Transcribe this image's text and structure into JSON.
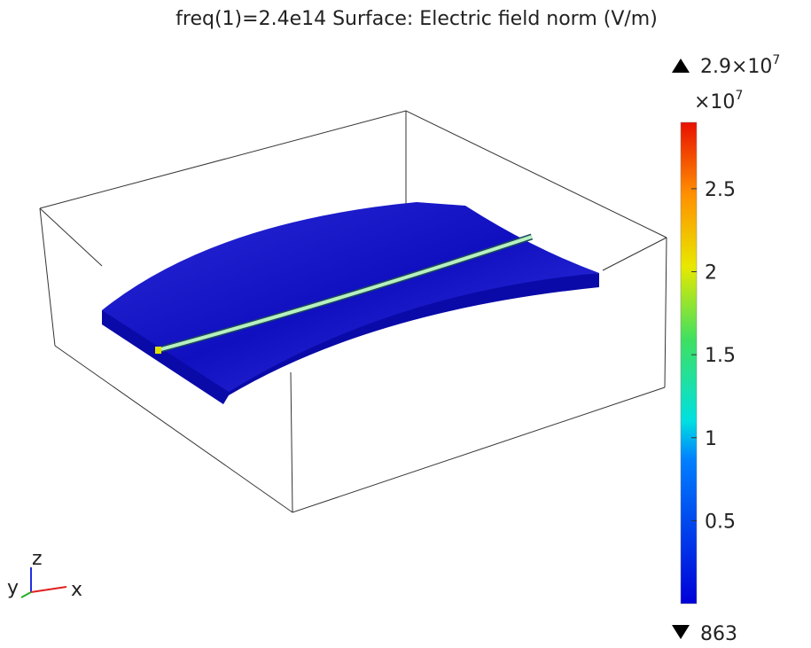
{
  "plot": {
    "title": "freq(1)=2.4e14   Surface: Electric field norm (V/m)",
    "colorbar": {
      "max_label": {
        "base": "2.9×10",
        "exponent": "7"
      },
      "multiplier": {
        "base": "×10",
        "exponent": "7"
      },
      "min_label": "863",
      "lim": [
        8.63e-05,
        2.9
      ],
      "ticks": [
        0.5,
        1,
        1.5,
        2,
        2.5
      ]
    },
    "axes": {
      "z": "z",
      "y": "y",
      "x": "x"
    }
  }
}
